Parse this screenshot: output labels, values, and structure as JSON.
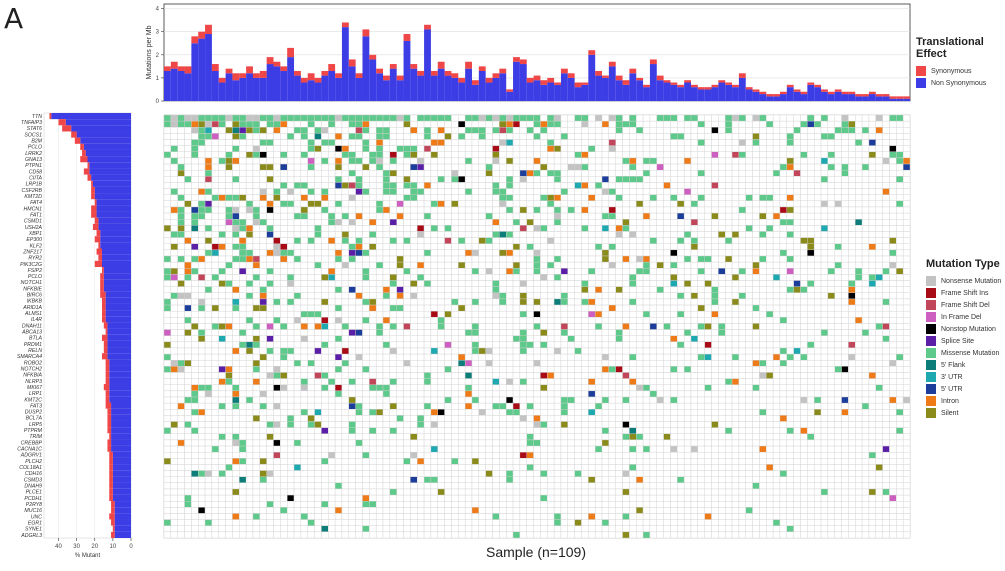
{
  "panel_label": "A",
  "chart_data": [
    {
      "type": "bar",
      "subtype": "stacked",
      "ylabel": "Mutations per Mb",
      "ylim": [
        0,
        4.2
      ],
      "yticks": [
        0,
        1,
        2,
        3,
        4
      ],
      "grid": true,
      "n_samples": 109,
      "series": [
        {
          "name": "Synonymous",
          "color": "#ef4747",
          "values": [
            0.2,
            0.3,
            0.2,
            0.3,
            0.3,
            0.3,
            0.4,
            0.3,
            0.2,
            0.2,
            0.3,
            0.2,
            0.3,
            0.2,
            0.3,
            0.3,
            0.2,
            0.2,
            0.4,
            0.2,
            0.2,
            0.3,
            0.2,
            0.2,
            0.3,
            0.2,
            0.2,
            0.3,
            0.2,
            0.3,
            0.2,
            0.2,
            0.2,
            0.2,
            0.2,
            0.3,
            0.2,
            0.2,
            0.2,
            0.2,
            0.3,
            0.2,
            0.2,
            0.2,
            0.3,
            0.2,
            0.2,
            0.2,
            0.2,
            0.2,
            0.1,
            0.2,
            0.2,
            0.2,
            0.2,
            0.2,
            0.2,
            0.1,
            0.2,
            0.2,
            0.2,
            0.1,
            0.2,
            0.2,
            0.1,
            0.2,
            0.2,
            0.2,
            0.2,
            0.1,
            0.1,
            0.2,
            0.2,
            0.1,
            0.1,
            0.1,
            0.1,
            0.1,
            0.1,
            0.1,
            0.1,
            0.1,
            0.1,
            0.1,
            0.2,
            0.1,
            0.1,
            0.1,
            0.1,
            0.1,
            0.1,
            0.1,
            0.1,
            0.1,
            0.1,
            0.1,
            0.1,
            0.1,
            0.1,
            0.1,
            0.1,
            0.1,
            0.1,
            0.1,
            0.1,
            0.1,
            0.1,
            0.1,
            0.1
          ]
        },
        {
          "name": "Non Synonymous",
          "color": "#3d3de6",
          "values": [
            1.3,
            1.4,
            1.3,
            1.2,
            2.5,
            2.7,
            2.9,
            1.3,
            0.8,
            1.2,
            0.9,
            1.0,
            1.2,
            1.0,
            1.0,
            1.6,
            1.5,
            1.3,
            1.9,
            1.1,
            0.8,
            0.9,
            0.8,
            1.1,
            1.3,
            1.0,
            3.2,
            1.5,
            1.0,
            2.8,
            1.8,
            1.2,
            0.9,
            1.4,
            0.9,
            2.6,
            1.4,
            1.1,
            3.1,
            1.1,
            1.4,
            1.1,
            1.0,
            0.8,
            1.4,
            0.7,
            1.3,
            0.8,
            1.0,
            1.2,
            0.4,
            1.7,
            1.6,
            0.8,
            0.9,
            0.7,
            0.8,
            0.7,
            1.2,
            1.0,
            0.6,
            0.7,
            2.0,
            1.1,
            1.0,
            1.5,
            0.9,
            0.7,
            1.2,
            0.9,
            0.6,
            1.6,
            0.9,
            0.8,
            0.7,
            0.6,
            0.8,
            0.6,
            0.5,
            0.5,
            0.6,
            0.8,
            0.7,
            0.6,
            1.0,
            0.5,
            0.4,
            0.3,
            0.2,
            0.2,
            0.3,
            0.6,
            0.4,
            0.3,
            0.7,
            0.6,
            0.4,
            0.3,
            0.4,
            0.3,
            0.3,
            0.2,
            0.2,
            0.3,
            0.2,
            0.2,
            0.1,
            0.1,
            0.1
          ]
        }
      ]
    },
    {
      "type": "bar",
      "orientation": "horizontal",
      "xlabel": "% Mutant",
      "xticks": [
        40,
        30,
        20,
        10,
        0
      ],
      "xlim": [
        0,
        48
      ],
      "categories": [
        "TTN",
        "TNFAIP3",
        "STAT6",
        "SOCS1",
        "B2M",
        "PCLO",
        "LRRK2",
        "GNA13",
        "PTPN1",
        "CD58",
        "CIITA",
        "LRP1B",
        "CSF2RB",
        "KMT2D",
        "FAT4",
        "HMCN1",
        "FAT1",
        "CSMD1",
        "USH2A",
        "XBP1",
        "EP300",
        "KLF2",
        "ZNF217",
        "RYR2",
        "PIK3C2G",
        "FSIP2",
        "PCLO",
        "NOTCH1",
        "NFKBIE",
        "BIRC6",
        "IKBKB",
        "ARID1A",
        "ALMS1",
        "IL4R",
        "DNAH11",
        "ABCA13",
        "BTLA",
        "PRDM1",
        "RELN",
        "SMARCA4",
        "ROBO2",
        "NOTCH2",
        "NFKBIA",
        "NLRP3",
        "MKI67",
        "LRP1",
        "KMT2C",
        "FAT3",
        "DUSP2",
        "BCL7A",
        "LRP5",
        "PTPRM",
        "TRIM",
        "CREBBP",
        "CACNA1C",
        "ADGRV1",
        "PLCH2",
        "COL18A1",
        "CDH16",
        "CSMD3",
        "DNAH9",
        "PLCE1",
        "PCDH1",
        "P2RY8",
        "MUC16",
        "UNC",
        "EGR1",
        "SYNE1",
        "ADGRL3"
      ],
      "series": [
        {
          "name": "Non Synonymous",
          "color": "#3d3de6",
          "values": [
            44,
            36,
            33,
            30,
            28,
            26,
            25,
            24,
            23,
            23,
            22,
            21,
            20,
            20,
            19,
            19,
            19,
            18,
            18,
            17,
            17,
            17,
            16,
            16,
            16,
            15,
            15,
            15,
            15,
            14,
            14,
            14,
            14,
            14,
            13,
            13,
            13,
            13,
            13,
            13,
            12,
            12,
            12,
            12,
            12,
            12,
            12,
            11,
            11,
            11,
            11,
            11,
            11,
            11,
            11,
            10,
            10,
            10,
            10,
            10,
            10,
            10,
            10,
            9,
            9,
            9,
            9,
            9,
            9
          ]
        },
        {
          "name": "Synonymous",
          "color": "#ef4747",
          "values": [
            1,
            4,
            5,
            3,
            3,
            2,
            2,
            4,
            1,
            3,
            2,
            1,
            2,
            2,
            1,
            3,
            3,
            2,
            3,
            2,
            3,
            1,
            3,
            2,
            4,
            1,
            2,
            2,
            2,
            3,
            2,
            2,
            2,
            2,
            2,
            1,
            3,
            2,
            2,
            3,
            2,
            2,
            2,
            2,
            3,
            2,
            2,
            3,
            2,
            2,
            2,
            2,
            1,
            2,
            2,
            2,
            2,
            2,
            2,
            2,
            2,
            2,
            2,
            2,
            2,
            3,
            2,
            1,
            2
          ]
        }
      ]
    },
    {
      "type": "heatmap",
      "xlabel": "Sample (n=109)",
      "n_genes": 69,
      "n_samples": 109
    }
  ],
  "legend_translational": {
    "title": "Translational Effect",
    "items": [
      {
        "label": "Synonymous",
        "color": "#ef4747"
      },
      {
        "label": "Non Synonymous",
        "color": "#3d3de6"
      }
    ]
  },
  "legend_mutation": {
    "title": "Mutation Type",
    "items": [
      {
        "label": "Nonsense Mutation",
        "color": "#c3c3c3"
      },
      {
        "label": "Frame Shift Ins",
        "color": "#a80b16"
      },
      {
        "label": "Frame Shift Del",
        "color": "#c2465a"
      },
      {
        "label": "In Frame Del",
        "color": "#cd5fc0"
      },
      {
        "label": "Nonstop Mutation",
        "color": "#000000"
      },
      {
        "label": "Splice Site",
        "color": "#5a1fa6"
      },
      {
        "label": "Missense Mutation",
        "color": "#5dc98a"
      },
      {
        "label": "5' Flank",
        "color": "#0d7d79"
      },
      {
        "label": "3' UTR",
        "color": "#1ea8b0"
      },
      {
        "label": "5' UTR",
        "color": "#1c3e9a"
      },
      {
        "label": "Intron",
        "color": "#ee7b17"
      },
      {
        "label": "Silent",
        "color": "#8b8b1c"
      }
    ]
  }
}
